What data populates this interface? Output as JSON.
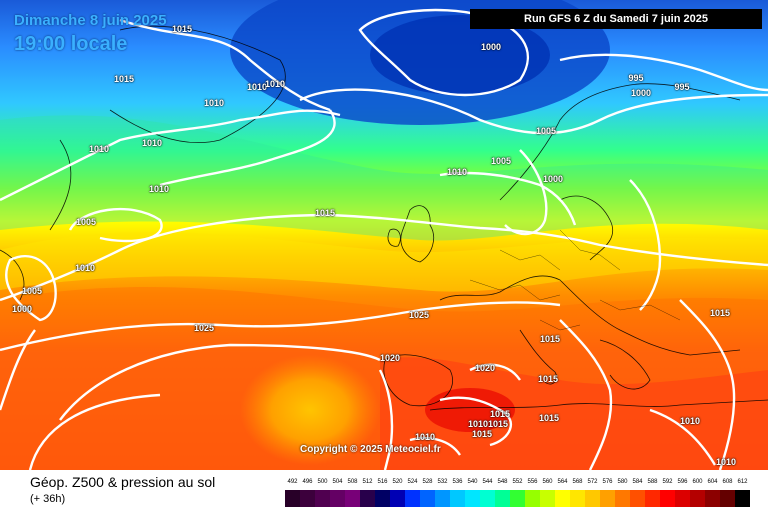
{
  "header": {
    "date": "Dimanche 8 juin 2025",
    "time": "19:00 locale",
    "run": "Run GFS 6 Z du Samedi 7 juin 2025"
  },
  "copyright": "Copyright © 2025 Meteociel.fr",
  "legend": {
    "title": "Géop. Z500 & pression au sol",
    "subtitle": "(+ 36h)",
    "values": [
      "492",
      "496",
      "500",
      "504",
      "508",
      "512",
      "516",
      "520",
      "524",
      "528",
      "532",
      "536",
      "540",
      "544",
      "548",
      "552",
      "556",
      "560",
      "564",
      "568",
      "572",
      "576",
      "580",
      "584",
      "588",
      "592",
      "596",
      "600",
      "604",
      "608",
      "612"
    ],
    "colors": [
      "#280028",
      "#3c003c",
      "#500050",
      "#640064",
      "#780078",
      "#28004b",
      "#000064",
      "#0000b4",
      "#0032ff",
      "#0064ff",
      "#0096ff",
      "#00c8ff",
      "#00e6ff",
      "#00ffd2",
      "#00ff96",
      "#32ff32",
      "#96ff00",
      "#c8ff00",
      "#ffff00",
      "#ffe600",
      "#ffc800",
      "#ffa000",
      "#ff7800",
      "#ff5000",
      "#ff2800",
      "#ff0000",
      "#dc0000",
      "#b40000",
      "#8c0000",
      "#640000",
      "#000000"
    ]
  },
  "map": {
    "isobars": [
      "1015",
      "1015",
      "1010",
      "1010",
      "1010",
      "1010",
      "1010",
      "1010",
      "1005",
      "1010",
      "1005",
      "1000",
      "1000",
      "995",
      "1000",
      "995",
      "1005",
      "1005",
      "1010",
      "1000",
      "1015",
      "1025",
      "1025",
      "1020",
      "1020",
      "1015",
      "1015",
      "1015",
      "1015",
      "1015",
      "1015",
      "1010",
      "1010",
      "1015",
      "1010",
      "1010"
    ]
  }
}
